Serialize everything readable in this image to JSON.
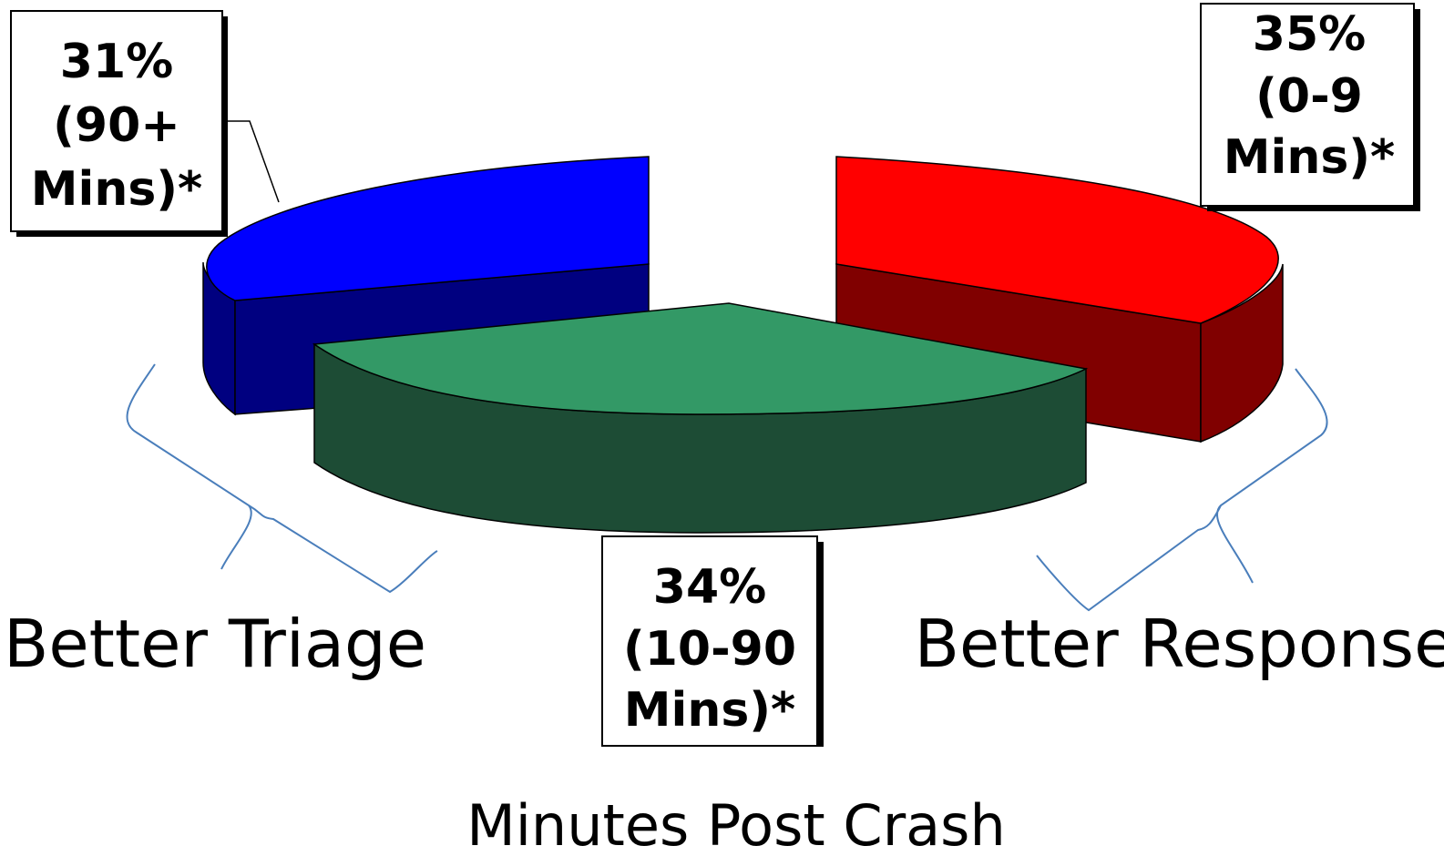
{
  "chart_data": {
    "type": "pie",
    "style": "3d-exploded",
    "xlabel": "Minutes Post Crash",
    "slices": [
      {
        "value": 35,
        "percent_label": "35%",
        "range_label": "(0-9",
        "unit_label": "Mins)*",
        "color": "#ff0000",
        "side_color": "#800000"
      },
      {
        "value": 34,
        "percent_label": "34%",
        "range_label": "(10-90",
        "unit_label": "Mins)*",
        "color": "#339966",
        "side_color": "#1d4c35"
      },
      {
        "value": 31,
        "percent_label": "31%",
        "range_label": "(90+",
        "unit_label": "Mins)*",
        "color": "#0000ff",
        "side_color": "#000080"
      }
    ],
    "annotations": [
      {
        "text": "Better Triage"
      },
      {
        "text": "Better Response"
      }
    ],
    "bracket_color": "#4a7ebb"
  }
}
